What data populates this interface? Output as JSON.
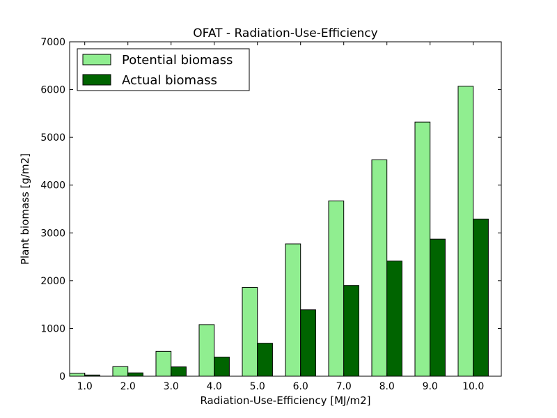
{
  "chart_data": {
    "type": "bar",
    "title": "OFAT - Radiation-Use-Efficiency",
    "xlabel": "Radiation-Use-Efficiency [MJ/m2]",
    "ylabel": "Plant biomass [g/m2]",
    "categories": [
      "1.0",
      "2.0",
      "3.0",
      "4.0",
      "5.0",
      "6.0",
      "7.0",
      "8.0",
      "9.0",
      "10.0"
    ],
    "ylim": [
      0,
      7000
    ],
    "yticks": [
      0,
      1000,
      2000,
      3000,
      4000,
      5000,
      6000,
      7000
    ],
    "legend_position": "top-left",
    "series": [
      {
        "name": "Potential biomass",
        "color": "#90ee90",
        "values": [
          60,
          200,
          520,
          1080,
          1860,
          2770,
          3670,
          4530,
          5320,
          6070
        ]
      },
      {
        "name": "Actual biomass",
        "color": "#006400",
        "values": [
          25,
          70,
          195,
          400,
          690,
          1390,
          1900,
          2410,
          2870,
          3290
        ]
      }
    ]
  }
}
